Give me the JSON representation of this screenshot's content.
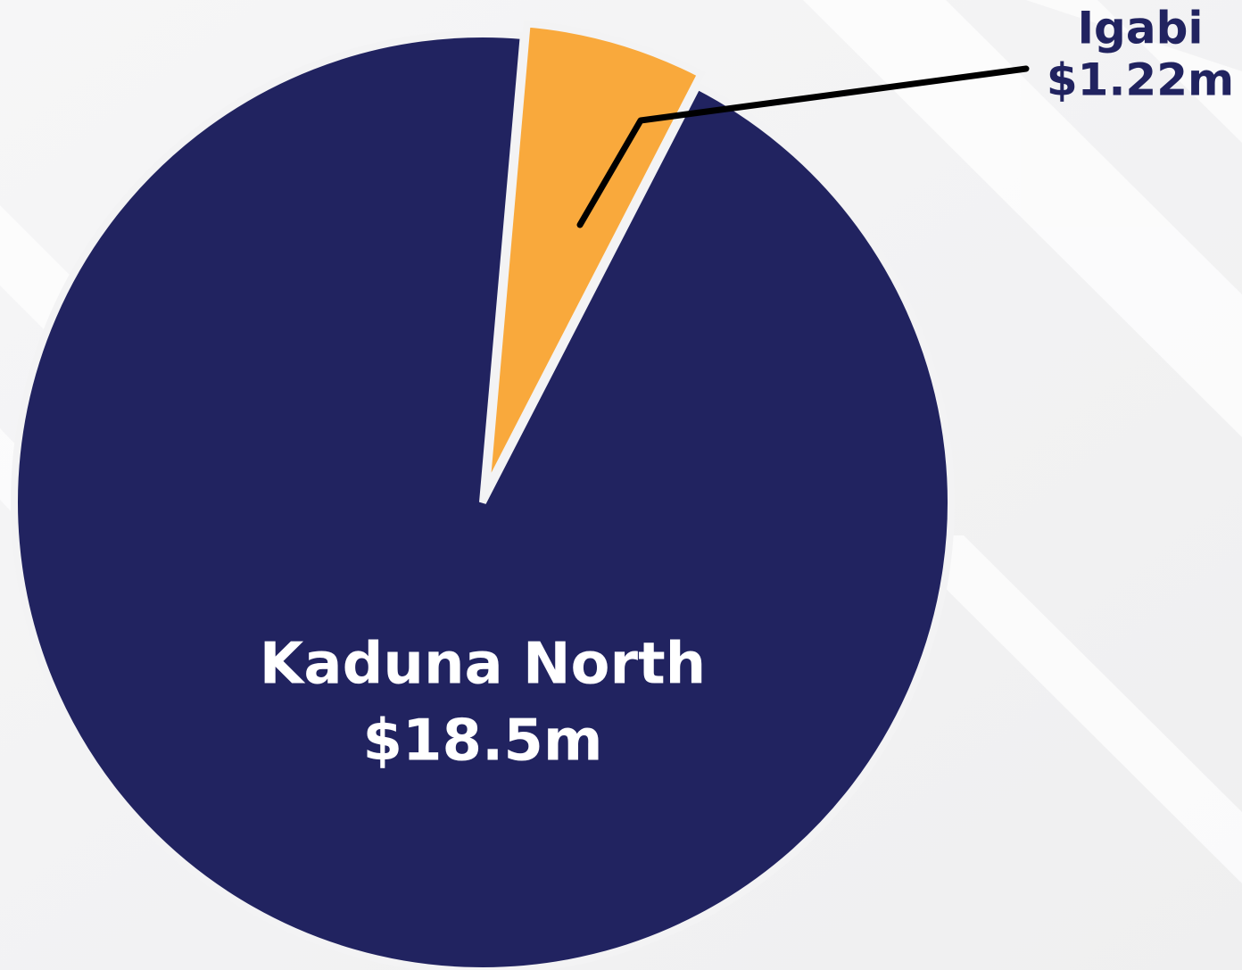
{
  "chart_data": {
    "type": "pie",
    "categories": [
      "Igabi",
      "Kaduna North"
    ],
    "values": [
      1.22,
      18.5
    ],
    "value_labels": [
      "$1.22m",
      "$18.5m"
    ],
    "colors": [
      "#f9a93c",
      "#212360"
    ]
  }
}
